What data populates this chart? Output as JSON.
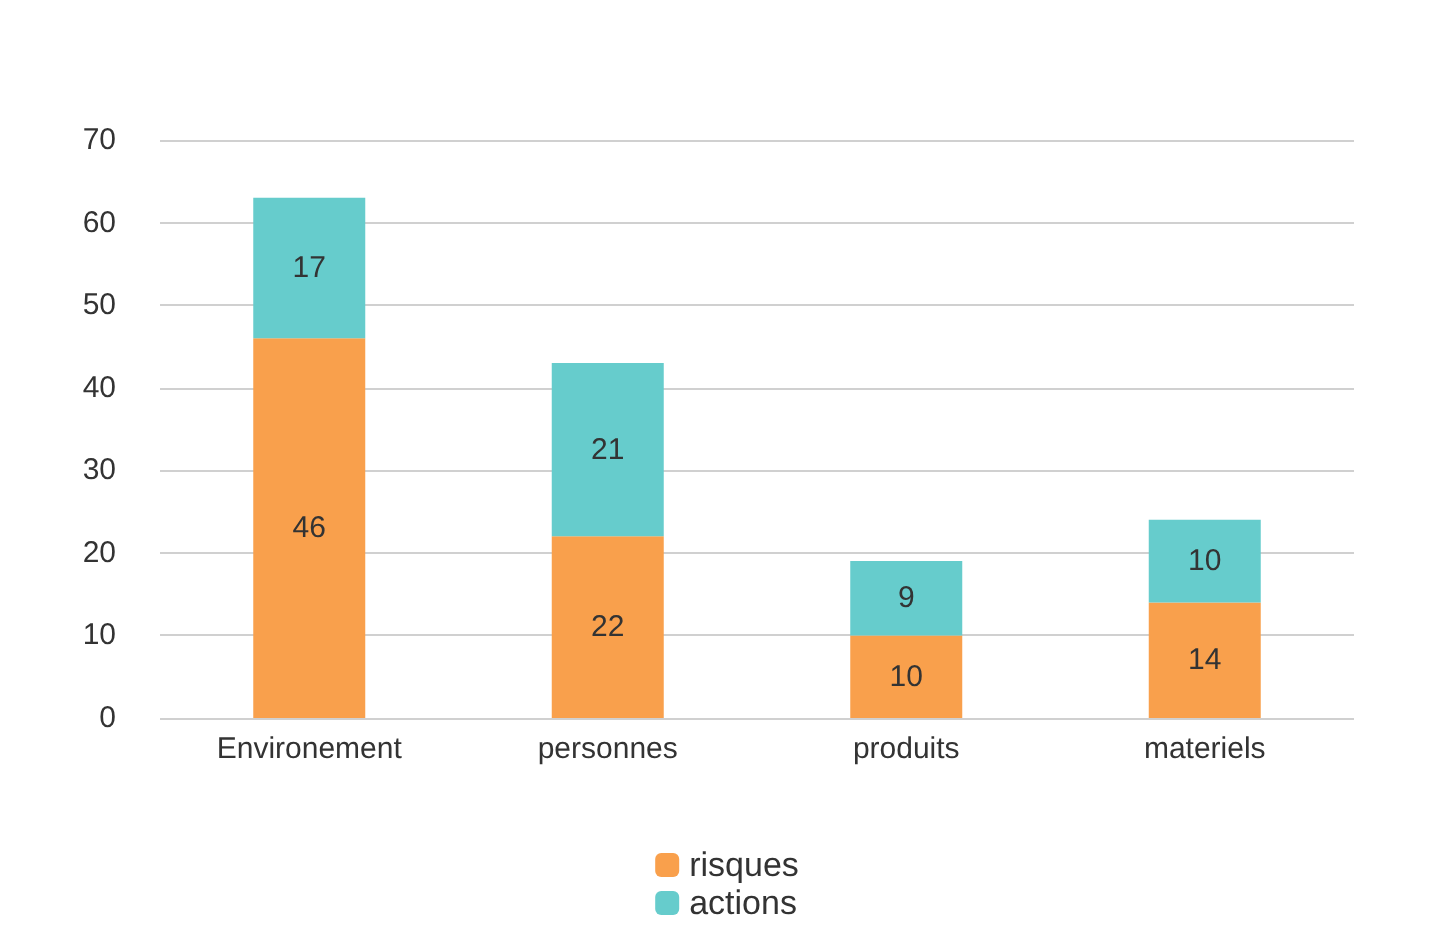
{
  "chart_data": {
    "type": "bar",
    "stacked": true,
    "categories": [
      "Environement",
      "personnes",
      "produits",
      "materiels"
    ],
    "series": [
      {
        "name": "risques",
        "color": "#f9a04c",
        "values": [
          46,
          22,
          10,
          14
        ]
      },
      {
        "name": "actions",
        "color": "#66cccc",
        "values": [
          17,
          21,
          9,
          10
        ]
      }
    ],
    "ylim": [
      0,
      70
    ],
    "yticks": [
      0,
      10,
      20,
      30,
      40,
      50,
      60,
      70
    ],
    "grid": "y",
    "legend": "bottom",
    "data_labels": true
  }
}
